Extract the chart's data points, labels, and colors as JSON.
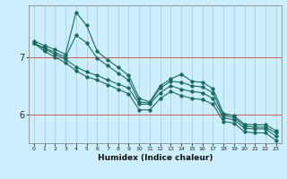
{
  "xlabel": "Humidex (Indice chaleur)",
  "bg_color": "#cceeff",
  "line_color": "#1a6b5e",
  "xlim": [
    -0.5,
    23.5
  ],
  "ylim": [
    5.5,
    7.9
  ],
  "yticks": [
    6,
    7
  ],
  "xticks": [
    0,
    1,
    2,
    3,
    4,
    5,
    6,
    7,
    8,
    9,
    10,
    11,
    12,
    13,
    14,
    15,
    16,
    17,
    18,
    19,
    20,
    21,
    22,
    23
  ],
  "series": [
    [
      7.28,
      7.2,
      7.13,
      7.05,
      7.78,
      7.55,
      7.1,
      6.95,
      6.82,
      6.68,
      6.28,
      6.22,
      6.5,
      6.62,
      6.7,
      6.58,
      6.56,
      6.45,
      6.02,
      5.98,
      5.83,
      5.82,
      5.82,
      5.72
    ],
    [
      7.24,
      7.16,
      7.08,
      7.0,
      7.38,
      7.25,
      6.98,
      6.85,
      6.72,
      6.6,
      6.22,
      6.2,
      6.46,
      6.58,
      6.56,
      6.5,
      6.48,
      6.38,
      5.98,
      5.95,
      5.8,
      5.78,
      5.78,
      5.68
    ],
    [
      7.24,
      7.14,
      7.05,
      6.96,
      6.83,
      6.74,
      6.68,
      6.6,
      6.53,
      6.46,
      6.18,
      6.18,
      6.38,
      6.5,
      6.44,
      6.4,
      6.38,
      6.28,
      5.94,
      5.91,
      5.76,
      5.75,
      5.75,
      5.62
    ],
    [
      7.24,
      7.1,
      7.0,
      6.9,
      6.76,
      6.66,
      6.6,
      6.52,
      6.44,
      6.36,
      6.08,
      6.08,
      6.28,
      6.4,
      6.33,
      6.28,
      6.26,
      6.18,
      5.88,
      5.85,
      5.7,
      5.68,
      5.68,
      5.55
    ]
  ]
}
